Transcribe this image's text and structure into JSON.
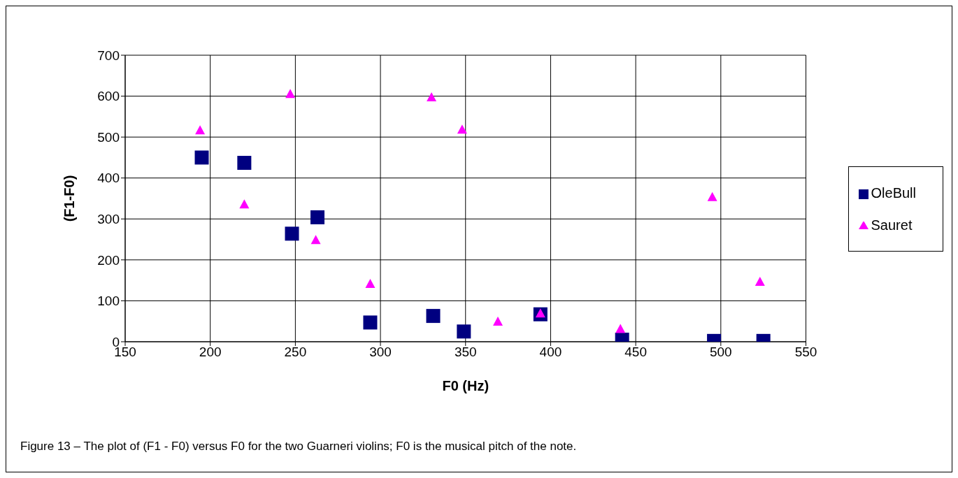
{
  "chart_data": {
    "type": "scatter",
    "xlabel": "F0 (Hz)",
    "ylabel": "(F1-F0)",
    "xlim": [
      150,
      550
    ],
    "xticks": [
      150,
      200,
      250,
      300,
      350,
      400,
      450,
      500,
      550
    ],
    "ylim": [
      0,
      700
    ],
    "yticks": [
      0,
      100,
      200,
      300,
      400,
      500,
      600,
      700
    ],
    "grid": true,
    "legend": "right",
    "annotations": [
      "Figure 13 – The plot of (F1 - F0) versus F0 for the two Guarneri violins; F0 is the musical pitch of the note."
    ],
    "series": [
      {
        "name": "OleBull",
        "color": "#000080",
        "marker": "square",
        "x": [
          195,
          220,
          248,
          263,
          294,
          331,
          349,
          394,
          442,
          496,
          525
        ],
        "values": [
          450,
          437,
          264,
          304,
          47,
          63,
          25,
          67,
          5,
          2,
          2
        ]
      },
      {
        "name": "Sauret",
        "color": "#ff00ff",
        "marker": "triangle",
        "x": [
          194,
          220,
          247,
          262,
          294,
          330,
          348,
          369,
          394,
          441,
          495,
          523
        ],
        "values": [
          515,
          334,
          604,
          247,
          140,
          596,
          517,
          48,
          68,
          30,
          352,
          145
        ]
      }
    ]
  }
}
